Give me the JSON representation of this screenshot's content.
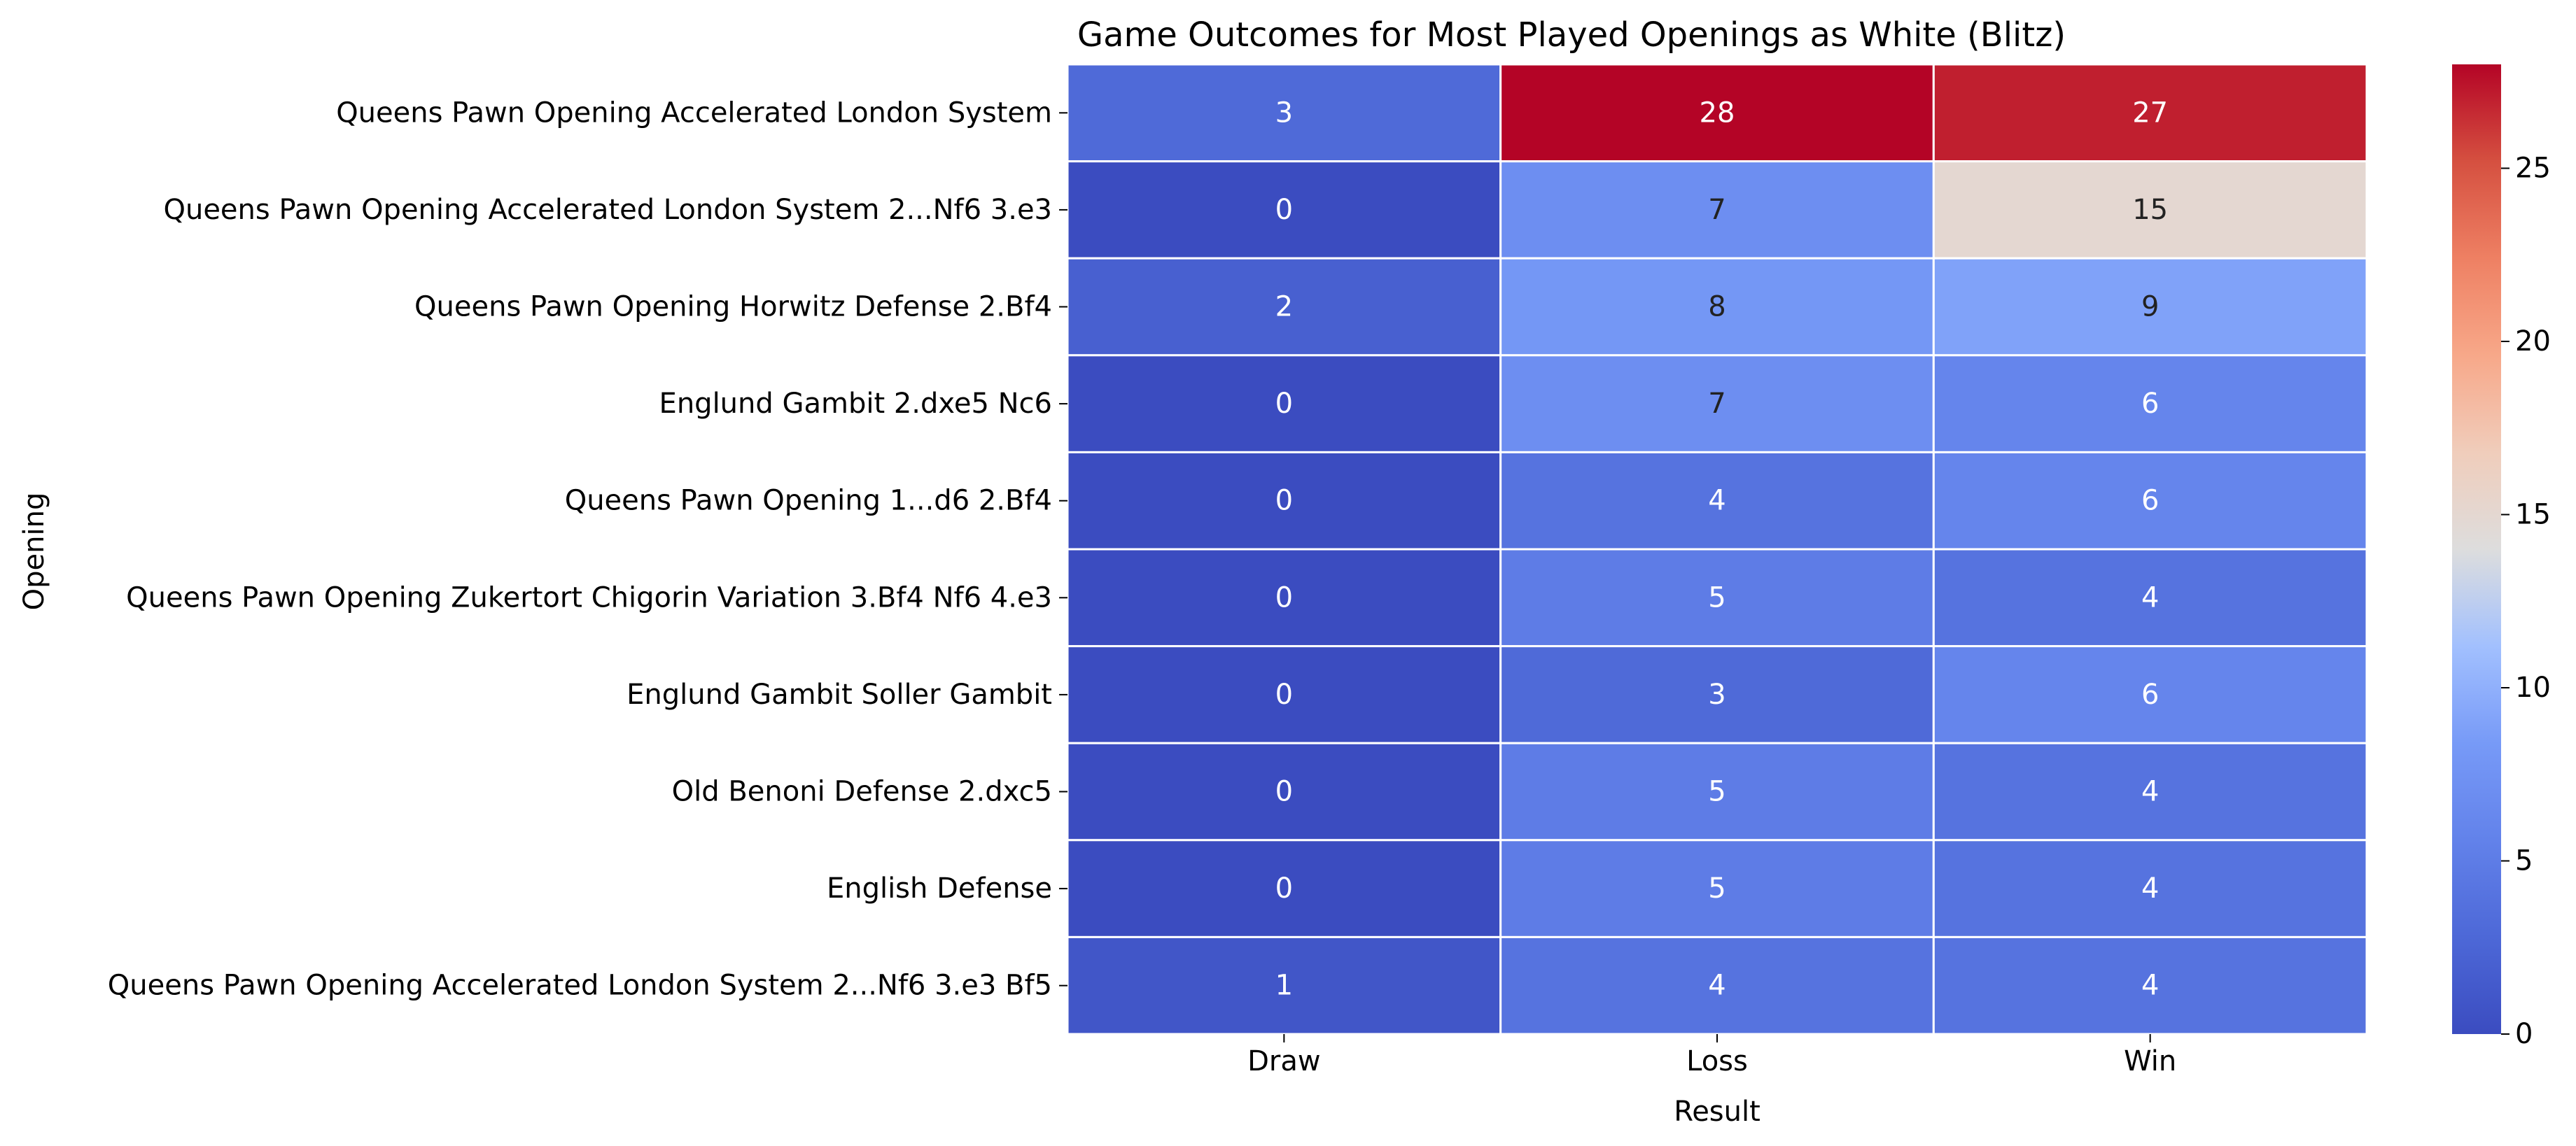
{
  "chart_data": {
    "type": "heatmap",
    "title": "Game Outcomes for Most Played Openings as White (Blitz)",
    "xlabel": "Result",
    "ylabel": "Opening",
    "columns": [
      "Draw",
      "Loss",
      "Win"
    ],
    "rows": [
      "Queens Pawn Opening Accelerated London System",
      "Queens Pawn Opening Accelerated London System 2...Nf6 3.e3",
      "Queens Pawn Opening Horwitz Defense 2.Bf4",
      "Englund Gambit 2.dxe5 Nc6",
      "Queens Pawn Opening 1...d6 2.Bf4",
      "Queens Pawn Opening Zukertort Chigorin Variation 3.Bf4 Nf6 4.e3",
      "Englund Gambit Soller Gambit",
      "Old Benoni Defense 2.dxc5",
      "English Defense",
      "Queens Pawn Opening Accelerated London System 2...Nf6 3.e3 Bf5"
    ],
    "values": [
      [
        3,
        28,
        27
      ],
      [
        0,
        7,
        15
      ],
      [
        2,
        8,
        9
      ],
      [
        0,
        7,
        6
      ],
      [
        0,
        4,
        6
      ],
      [
        0,
        5,
        4
      ],
      [
        0,
        3,
        6
      ],
      [
        0,
        5,
        4
      ],
      [
        0,
        5,
        4
      ],
      [
        1,
        4,
        4
      ]
    ],
    "colormap": "coolwarm",
    "color_range": [
      0,
      28
    ],
    "colorbar_ticks": [
      0,
      5,
      10,
      15,
      20,
      25
    ],
    "annotations": true,
    "grid_line_color": "#ffffff"
  }
}
